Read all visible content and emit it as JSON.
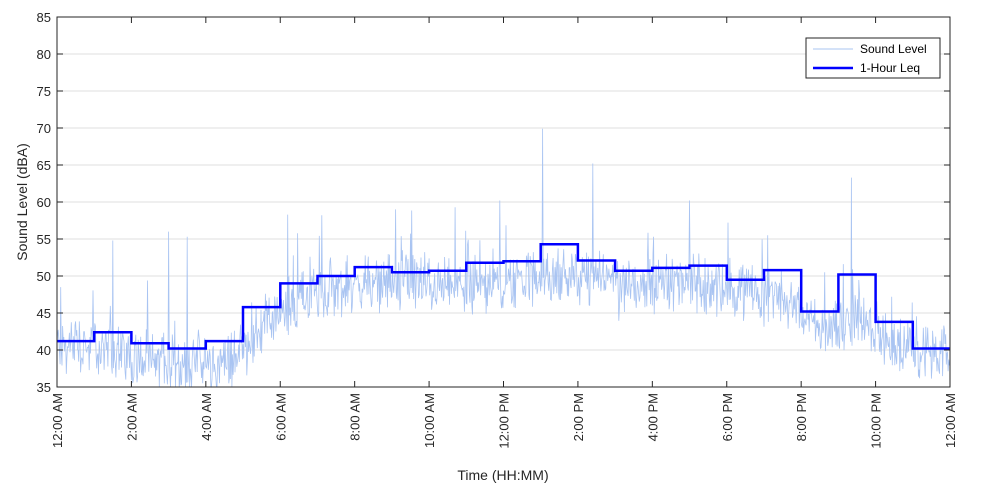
{
  "chart_data": {
    "type": "line",
    "xlabel": "Time (HH:MM)",
    "ylabel": "Sound Level (dBA)",
    "ylim": [
      35,
      85
    ],
    "xlim_hours": [
      0,
      24
    ],
    "y_ticks": [
      35,
      40,
      45,
      50,
      55,
      60,
      65,
      70,
      75,
      80,
      85
    ],
    "x_tick_hours": [
      0,
      2,
      4,
      6,
      8,
      10,
      12,
      14,
      16,
      18,
      20,
      22,
      24
    ],
    "x_tick_labels": [
      "12:00 AM",
      "2:00 AM",
      "4:00 AM",
      "6:00 AM",
      "8:00 AM",
      "10:00 AM",
      "12:00 PM",
      "2:00 PM",
      "4:00 PM",
      "6:00 PM",
      "8:00 PM",
      "10:00 PM",
      "12:00 AM"
    ],
    "grid": "horizontal",
    "legend_position": "top-right",
    "series": [
      {
        "name": "Sound Level",
        "color": "#a9c4f2",
        "style": "thin",
        "hourly_typical_dba": [
          40.5,
          40.0,
          38.5,
          37.5,
          38.0,
          43.0,
          47.0,
          48.5,
          49.0,
          49.5,
          48.5,
          49.0,
          49.5,
          50.0,
          49.5,
          49.0,
          49.0,
          49.0,
          48.0,
          47.0,
          43.0,
          44.0,
          41.0,
          39.0
        ],
        "notable_peaks": [
          {
            "hour": 0.1,
            "dba": 48.5
          },
          {
            "hour": 1.5,
            "dba": 54.8
          },
          {
            "hour": 3.0,
            "dba": 56.0
          },
          {
            "hour": 3.5,
            "dba": 55.3
          },
          {
            "hour": 6.2,
            "dba": 58.3
          },
          {
            "hour": 9.1,
            "dba": 59.0
          },
          {
            "hour": 10.7,
            "dba": 59.3
          },
          {
            "hour": 11.9,
            "dba": 60.2
          },
          {
            "hour": 13.05,
            "dba": 69.9
          },
          {
            "hour": 14.4,
            "dba": 65.2
          },
          {
            "hour": 17.0,
            "dba": 60.2
          },
          {
            "hour": 19.1,
            "dba": 55.5
          },
          {
            "hour": 21.35,
            "dba": 63.3
          }
        ]
      },
      {
        "name": "1-Hour Leq",
        "color": "#0000ff",
        "style": "step",
        "hours": [
          0,
          1,
          2,
          3,
          4,
          5,
          6,
          7,
          8,
          9,
          10,
          11,
          12,
          13,
          14,
          15,
          16,
          17,
          18,
          19,
          20,
          21,
          22,
          23
        ],
        "values": [
          41.2,
          42.4,
          40.9,
          40.2,
          41.2,
          45.8,
          49.0,
          50.0,
          51.2,
          50.5,
          50.7,
          51.8,
          52.0,
          54.3,
          52.1,
          50.7,
          51.1,
          51.4,
          49.5,
          50.8,
          45.2,
          50.2,
          43.8,
          40.2
        ]
      }
    ]
  }
}
